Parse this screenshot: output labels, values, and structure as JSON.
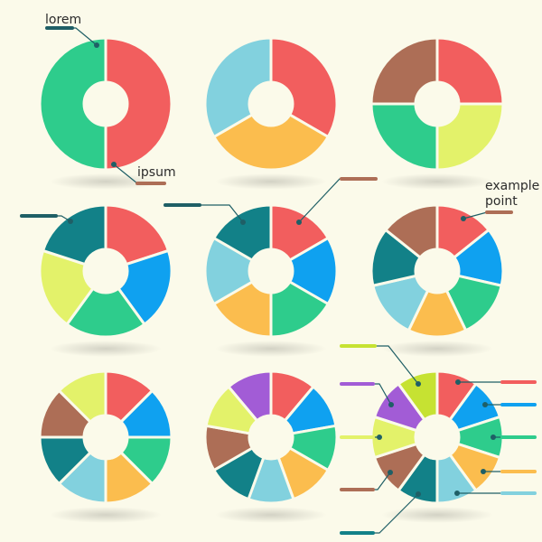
{
  "labels": {
    "lorem": "lorem",
    "ipsum": "ipsum",
    "example": "example",
    "point": "point"
  },
  "colors": {
    "background": "#fbfaea",
    "red": "#f25e5e",
    "blue": "#0fa1f0",
    "green": "#2ecc8c",
    "orange": "#fbbd4e",
    "lightblue": "#82d1de",
    "teal": "#128188",
    "olive": "#e3f26a",
    "brown": "#ad6e56",
    "purple": "#a25cd6",
    "lime": "#c6e232",
    "pointer_line": "#1f5f66"
  },
  "donuts": [
    {
      "name": "donut-2-segments",
      "colors": [
        "red",
        "green"
      ]
    },
    {
      "name": "donut-3-segments",
      "colors": [
        "red",
        "orange",
        "lightblue"
      ]
    },
    {
      "name": "donut-4-segments",
      "colors": [
        "red",
        "olive",
        "green",
        "brown"
      ]
    },
    {
      "name": "donut-5-segments",
      "colors": [
        "red",
        "blue",
        "green",
        "olive",
        "teal"
      ]
    },
    {
      "name": "donut-6-segments",
      "colors": [
        "red",
        "blue",
        "green",
        "orange",
        "lightblue",
        "teal"
      ]
    },
    {
      "name": "donut-7-segments",
      "colors": [
        "red",
        "blue",
        "green",
        "orange",
        "lightblue",
        "teal",
        "brown"
      ]
    },
    {
      "name": "donut-8-segments",
      "colors": [
        "red",
        "blue",
        "green",
        "orange",
        "lightblue",
        "teal",
        "brown",
        "olive"
      ]
    },
    {
      "name": "donut-9-segments",
      "colors": [
        "red",
        "blue",
        "green",
        "orange",
        "lightblue",
        "teal",
        "brown",
        "olive",
        "purple"
      ]
    },
    {
      "name": "donut-10-segments",
      "colors": [
        "red",
        "blue",
        "green",
        "orange",
        "lightblue",
        "teal",
        "brown",
        "olive",
        "purple",
        "lime"
      ]
    }
  ]
}
